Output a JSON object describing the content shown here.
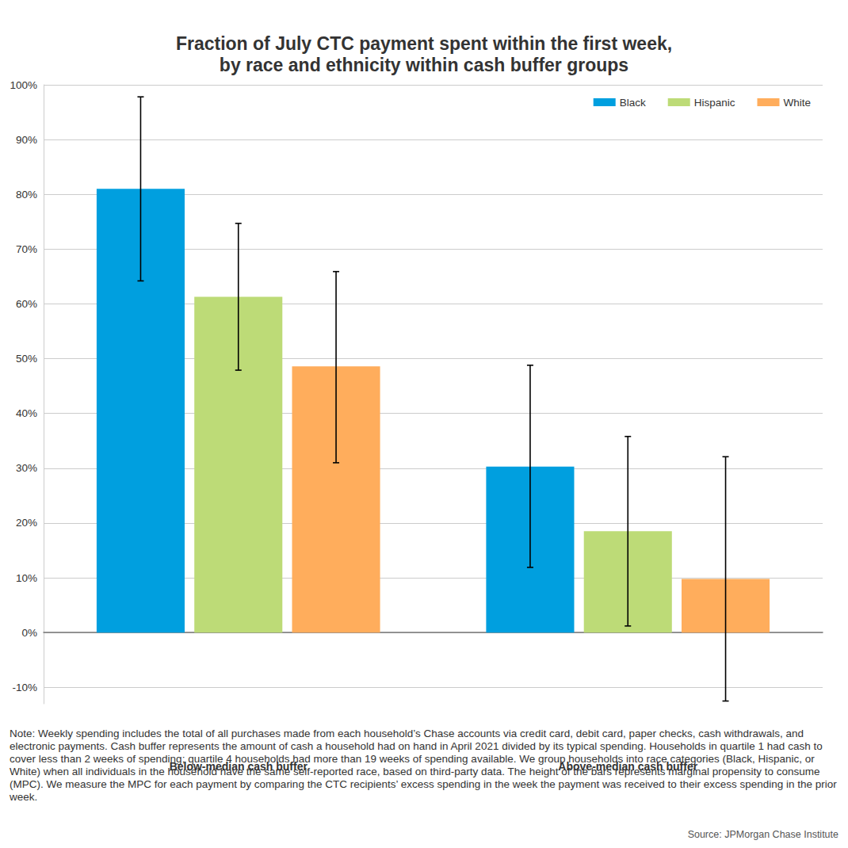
{
  "chart_data": {
    "type": "bar",
    "title": "Fraction of July CTC payment spent within the first week,\nby race and ethnicity within cash buffer groups",
    "categories": [
      "Below-median cash buffer",
      "Above-median cash buffer"
    ],
    "series": [
      {
        "name": "Black",
        "color": "#009FDF",
        "values": [
          81.0,
          30.3
        ],
        "error": [
          [
            64.2,
            97.8
          ],
          [
            11.9,
            48.8
          ]
        ]
      },
      {
        "name": "Hispanic",
        "color": "#BDDB77",
        "values": [
          61.3,
          18.5
        ],
        "error": [
          [
            47.9,
            74.7
          ],
          [
            1.2,
            35.8
          ]
        ]
      },
      {
        "name": "White",
        "color": "#FFAD5C",
        "values": [
          48.6,
          9.8
        ],
        "error": [
          [
            31.0,
            65.9
          ],
          [
            -12.5,
            32.1
          ]
        ]
      }
    ],
    "ylim": [
      -13,
      100
    ],
    "yticks": [
      {
        "value": -10,
        "label": "-10%"
      },
      {
        "value": 0,
        "label": "0%"
      },
      {
        "value": 10,
        "label": "10%"
      },
      {
        "value": 20,
        "label": "20%"
      },
      {
        "value": 30,
        "label": "30%"
      },
      {
        "value": 40,
        "label": "40%"
      },
      {
        "value": 50,
        "label": "50%"
      },
      {
        "value": 60,
        "label": "60%"
      },
      {
        "value": 70,
        "label": "70%"
      },
      {
        "value": 80,
        "label": "80%"
      },
      {
        "value": 90,
        "label": "90%"
      },
      {
        "value": 100,
        "label": "100%"
      }
    ],
    "grid": true,
    "legend": "top-right",
    "note": "Note: Weekly spending includes the total of all purchases made from each household’s Chase accounts via credit card, debit card, paper checks, cash withdrawals, and electronic payments. Cash buffer represents the amount of cash a household had on hand in April 2021 divided by its typical spending. Households in quartile 1 had cash to cover less than 2 weeks of spending; quartile 4 households had more than 19 weeks of spending available. We group households into race categories (Black, Hispanic, or White) when all individuals in the household have the same self-reported race, based on third-party data. The height of the bars represents marginal propensity to consume (MPC). We measure the MPC for each payment by comparing the CTC recipients’ excess spending in the week the payment was received to their excess spending in the prior week.",
    "source": "Source: JPMorgan Chase Institute"
  }
}
